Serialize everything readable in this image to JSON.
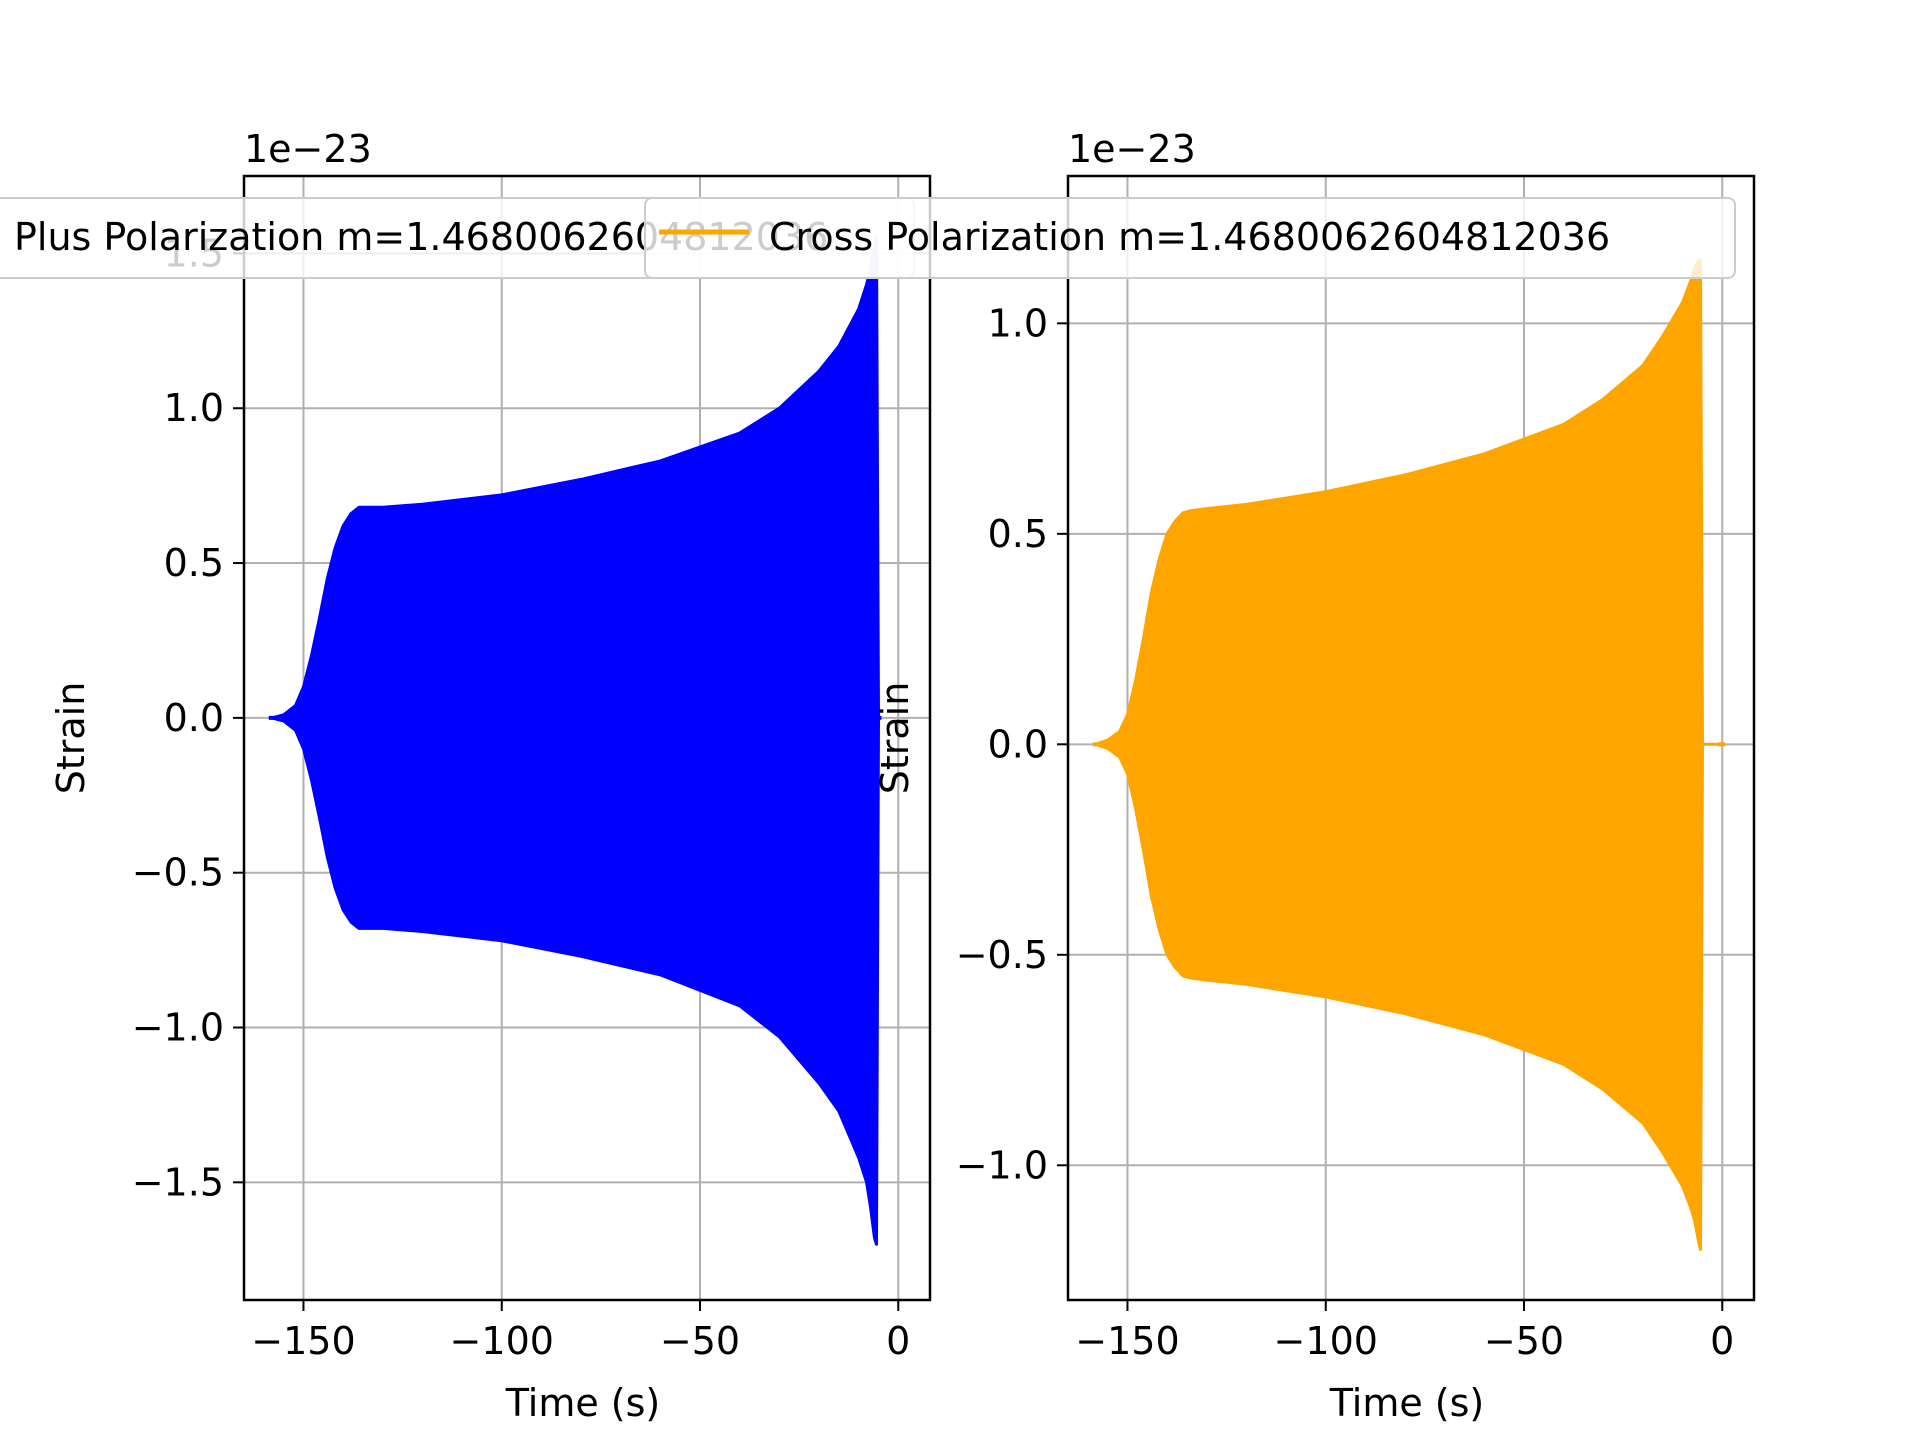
{
  "chart_data": [
    {
      "type": "line",
      "title": "",
      "xlabel": "Time (s)",
      "ylabel": "Strain",
      "y_offset_label": "1e−23",
      "xlim": [
        -165,
        8
      ],
      "ylim": [
        -1.88,
        1.75
      ],
      "xticks": [
        -150,
        -100,
        -50,
        0
      ],
      "xtick_labels": [
        "−150",
        "−100",
        "−50",
        "0"
      ],
      "yticks": [
        -1.5,
        -1.0,
        -0.5,
        0.0,
        0.5,
        1.0,
        1.5
      ],
      "ytick_labels": [
        "−1.5",
        "−1.0",
        "−0.5",
        "0.0",
        "0.5",
        "1.0",
        "1.5"
      ],
      "grid": true,
      "legend_position": "top",
      "series": [
        {
          "name": "Plus Polarization m=1.4680062604812036",
          "color": "#0000ff",
          "kind": "oscillating-envelope",
          "t": [
            -158,
            -155,
            -152,
            -150,
            -148,
            -146,
            -144,
            -142,
            -140,
            -138,
            -136,
            -134,
            -130,
            -120,
            -100,
            -80,
            -60,
            -40,
            -30,
            -20,
            -15,
            -10,
            -8,
            -7,
            -6,
            -5.5,
            -5
          ],
          "upper": [
            0.0,
            0.01,
            0.04,
            0.1,
            0.2,
            0.32,
            0.45,
            0.55,
            0.62,
            0.66,
            0.68,
            0.68,
            0.68,
            0.69,
            0.72,
            0.77,
            0.83,
            0.92,
            1.0,
            1.12,
            1.2,
            1.32,
            1.4,
            1.45,
            1.52,
            1.55,
            0.0
          ],
          "lower": [
            0.0,
            -0.01,
            -0.04,
            -0.1,
            -0.2,
            -0.32,
            -0.45,
            -0.55,
            -0.62,
            -0.66,
            -0.68,
            -0.68,
            -0.68,
            -0.69,
            -0.72,
            -0.77,
            -0.83,
            -0.93,
            -1.03,
            -1.18,
            -1.27,
            -1.42,
            -1.5,
            -1.58,
            -1.68,
            -1.7,
            0.0
          ]
        }
      ]
    },
    {
      "type": "line",
      "title": "",
      "xlabel": "Time (s)",
      "ylabel": "Strain",
      "y_offset_label": "1e−23",
      "xlim": [
        -165,
        8
      ],
      "ylim": [
        -1.32,
        1.35
      ],
      "xticks": [
        -150,
        -100,
        -50,
        0
      ],
      "xtick_labels": [
        "−150",
        "−100",
        "−50",
        "0"
      ],
      "yticks": [
        -1.0,
        -0.5,
        0.0,
        0.5,
        1.0
      ],
      "ytick_labels": [
        "−1.0",
        "−0.5",
        "0.0",
        "0.5",
        "1.0"
      ],
      "grid": true,
      "legend_position": "top",
      "series": [
        {
          "name": "Cross Polarization m=1.4680062604812036",
          "color": "#ffa500",
          "kind": "oscillating-envelope",
          "t": [
            -158,
            -155,
            -152,
            -150,
            -148,
            -146,
            -144,
            -142,
            -140,
            -138,
            -136,
            -134,
            -130,
            -120,
            -100,
            -80,
            -60,
            -40,
            -30,
            -20,
            -15,
            -10,
            -8,
            -7,
            -6,
            -5.5,
            -5,
            0
          ],
          "upper": [
            0.0,
            0.01,
            0.03,
            0.07,
            0.15,
            0.25,
            0.36,
            0.44,
            0.5,
            0.53,
            0.55,
            0.555,
            0.56,
            0.57,
            0.6,
            0.64,
            0.69,
            0.76,
            0.82,
            0.9,
            0.97,
            1.05,
            1.1,
            1.13,
            1.15,
            1.15,
            0.0,
            0.0
          ],
          "lower": [
            0.0,
            -0.01,
            -0.03,
            -0.07,
            -0.15,
            -0.25,
            -0.36,
            -0.44,
            -0.5,
            -0.53,
            -0.55,
            -0.555,
            -0.56,
            -0.57,
            -0.6,
            -0.64,
            -0.69,
            -0.76,
            -0.82,
            -0.9,
            -0.97,
            -1.05,
            -1.1,
            -1.13,
            -1.18,
            -1.2,
            0.0,
            0.0
          ]
        }
      ]
    }
  ]
}
